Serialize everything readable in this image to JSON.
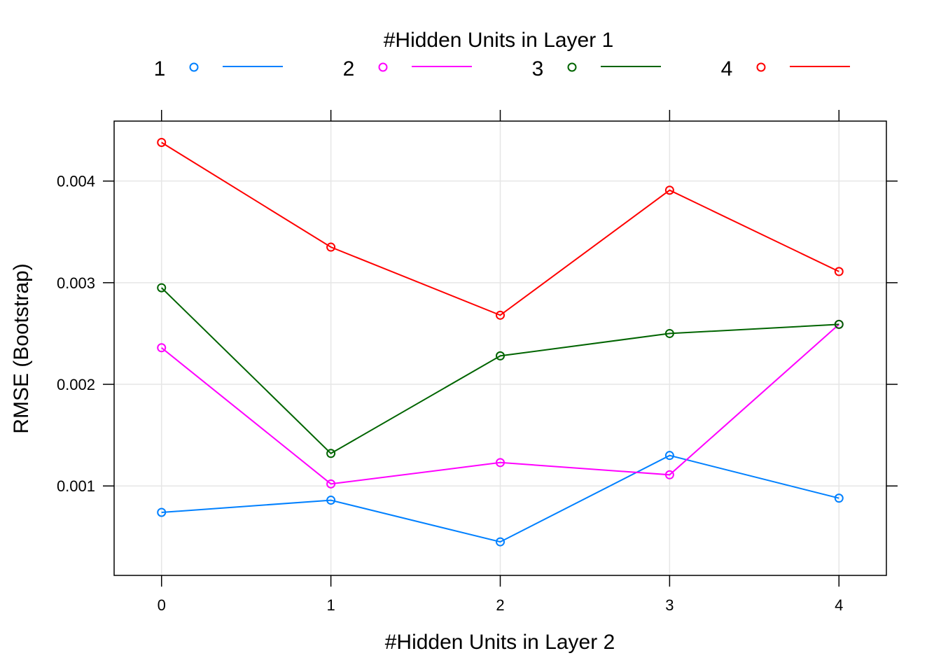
{
  "chart_data": {
    "type": "line",
    "legend": {
      "title": "#Hidden Units in Layer 1",
      "placement": "top"
    },
    "x": [
      0,
      1,
      2,
      3,
      4
    ],
    "x_ticks": [
      "0",
      "1",
      "2",
      "3",
      "4"
    ],
    "xlabel": "#Hidden Units in Layer 2",
    "ylabel": "RMSE (Bootstrap)",
    "xlim": [
      -0.28,
      4.28
    ],
    "ylim": [
      0.00012,
      0.00459
    ],
    "y_ticks": [
      0.001,
      0.002,
      0.003,
      0.004
    ],
    "y_tick_labels": [
      "0.001",
      "0.002",
      "0.003",
      "0.004"
    ],
    "grid": true,
    "series": [
      {
        "name": "1",
        "color": "#0080ff",
        "values": [
          0.00074,
          0.00086,
          0.00045,
          0.0013,
          0.00088
        ]
      },
      {
        "name": "2",
        "color": "#ff00ff",
        "values": [
          0.00236,
          0.00102,
          0.00123,
          0.00111,
          0.00259
        ]
      },
      {
        "name": "3",
        "color": "#006400",
        "values": [
          0.00295,
          0.00132,
          0.00228,
          0.0025,
          0.00259
        ]
      },
      {
        "name": "4",
        "color": "#ff0000",
        "values": [
          0.00438,
          0.00335,
          0.00268,
          0.00391,
          0.00311
        ]
      }
    ]
  }
}
